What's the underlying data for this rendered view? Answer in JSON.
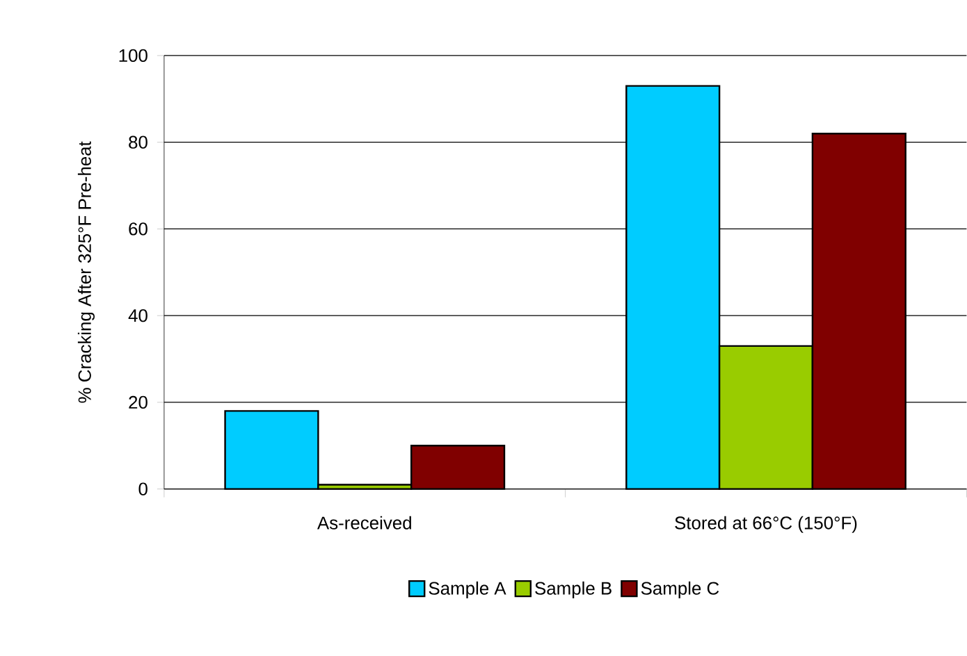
{
  "chart_data": {
    "type": "bar",
    "ylabel": "% Cracking After 325°F Pre-heat",
    "categories": [
      "As-received",
      "Stored at 66°C (150°F)"
    ],
    "series": [
      {
        "name": "Sample A",
        "color": "#00ccff",
        "values": [
          18,
          93
        ]
      },
      {
        "name": "Sample B",
        "color": "#99cc00",
        "values": [
          1,
          33
        ]
      },
      {
        "name": "Sample C",
        "color": "#800000",
        "values": [
          10,
          82
        ]
      }
    ],
    "ylim": [
      0,
      100
    ],
    "yticks": [
      0,
      20,
      40,
      60,
      80,
      100
    ],
    "grid": "y",
    "legend": "bottom"
  }
}
